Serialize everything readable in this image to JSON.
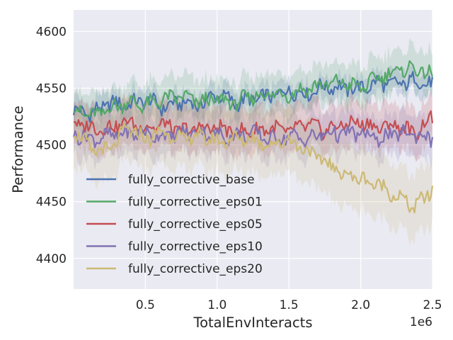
{
  "chart_data": {
    "type": "line",
    "title": "",
    "xlabel": "TotalEnvInteracts",
    "ylabel": "Performance",
    "x_offset_label": "1e6",
    "xlim": [
      0,
      2.5
    ],
    "ylim": [
      4373,
      4619
    ],
    "x_ticks": [
      0.5,
      1.0,
      1.5,
      2.0,
      2.5
    ],
    "x_tick_labels": [
      "0.5",
      "1.0",
      "1.5",
      "2.0",
      "2.5"
    ],
    "y_ticks": [
      4400,
      4450,
      4500,
      4550,
      4600
    ],
    "y_tick_labels": [
      "4400",
      "4450",
      "4500",
      "4550",
      "4600"
    ],
    "grid": true,
    "legend_position": "lower-left",
    "background_color": "#EAEAF2",
    "grid_color": "#FFFFFF",
    "x": [
      0.0,
      0.125,
      0.25,
      0.375,
      0.5,
      0.625,
      0.75,
      0.875,
      1.0,
      1.125,
      1.25,
      1.375,
      1.5,
      1.625,
      1.75,
      1.875,
      2.0,
      2.125,
      2.25,
      2.375,
      2.5
    ],
    "series": [
      {
        "name": "fully_corrective_base",
        "color": "#4C72B0",
        "values": [
          4530,
          4528,
          4537,
          4535,
          4540,
          4533,
          4538,
          4535,
          4545,
          4537,
          4540,
          4543,
          4548,
          4545,
          4552,
          4550,
          4550,
          4555,
          4553,
          4557,
          4553
        ],
        "band": 10
      },
      {
        "name": "fully_corrective_eps01",
        "color": "#55A868",
        "values": [
          4532,
          4525,
          4532,
          4538,
          4535,
          4540,
          4543,
          4538,
          4540,
          4537,
          4543,
          4545,
          4545,
          4550,
          4553,
          4555,
          4550,
          4560,
          4565,
          4568,
          4560
        ],
        "band": 18
      },
      {
        "name": "fully_corrective_eps05",
        "color": "#C44E52",
        "values": [
          4520,
          4515,
          4515,
          4520,
          4515,
          4518,
          4512,
          4515,
          4515,
          4512,
          4512,
          4515,
          4512,
          4518,
          4513,
          4518,
          4520,
          4515,
          4518,
          4510,
          4525
        ],
        "band": 20
      },
      {
        "name": "fully_corrective_eps10",
        "color": "#8172B2",
        "values": [
          4510,
          4505,
          4508,
          4510,
          4510,
          4508,
          4510,
          4512,
          4508,
          4508,
          4510,
          4505,
          4508,
          4505,
          4510,
          4510,
          4510,
          4505,
          4510,
          4510,
          4505
        ],
        "band": 18
      },
      {
        "name": "fully_corrective_eps20",
        "color": "#CCB974",
        "values": [
          4515,
          4495,
          4495,
          4515,
          4505,
          4512,
          4505,
          4508,
          4503,
          4505,
          4505,
          4500,
          4505,
          4495,
          4485,
          4475,
          4470,
          4465,
          4455,
          4445,
          4460
        ],
        "band": 28
      }
    ]
  }
}
